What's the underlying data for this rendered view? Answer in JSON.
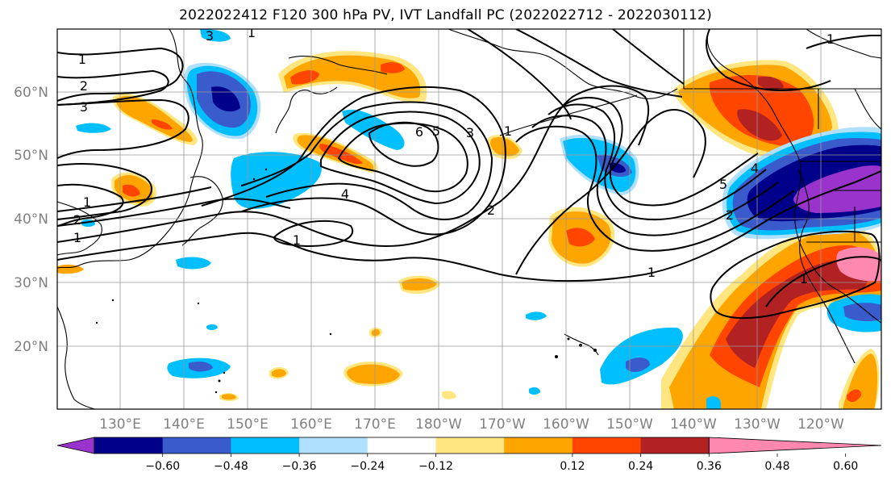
{
  "title": "2022022412 F120 300 hPa PV, IVT Landfall PC (2022022712 - 2022030112)",
  "lat_labels": [
    "60°N",
    "50°N",
    "40°N",
    "30°N",
    "20°N"
  ],
  "lon_labels": [
    "130°E",
    "140°E",
    "150°E",
    "160°E",
    "170°E",
    "180°W",
    "170°W",
    "160°W",
    "150°W",
    "140°W",
    "130°W",
    "120°W"
  ],
  "contour_labels": [
    "1",
    "2",
    "3",
    "6",
    "5",
    "3",
    "1",
    "4",
    "1",
    "2",
    "1",
    "5",
    "4",
    "2",
    "1",
    "2",
    "1",
    "1",
    "3",
    "1",
    "1"
  ],
  "colorbar": {
    "ticks": [
      "−0.60",
      "−0.48",
      "−0.36",
      "−0.24",
      "−0.12",
      "0.12",
      "0.24",
      "0.36",
      "0.48",
      "0.60"
    ],
    "colors": [
      "#9933cc",
      "#00008b",
      "#3a5bcc",
      "#00bfff",
      "#b0e0ff",
      "#ffffff",
      "#ffe680",
      "#ffa500",
      "#ff4500",
      "#b22222",
      "#ff88b0"
    ]
  },
  "fill_colors": {
    "neg1": "#b0e0ff",
    "neg2": "#00bfff",
    "neg3": "#3a5bcc",
    "neg4": "#00008b",
    "neg5": "#9933cc",
    "pos1": "#ffe680",
    "pos2": "#ffa500",
    "pos3": "#ff4500",
    "pos4": "#b22222",
    "pos5": "#ff88b0"
  }
}
